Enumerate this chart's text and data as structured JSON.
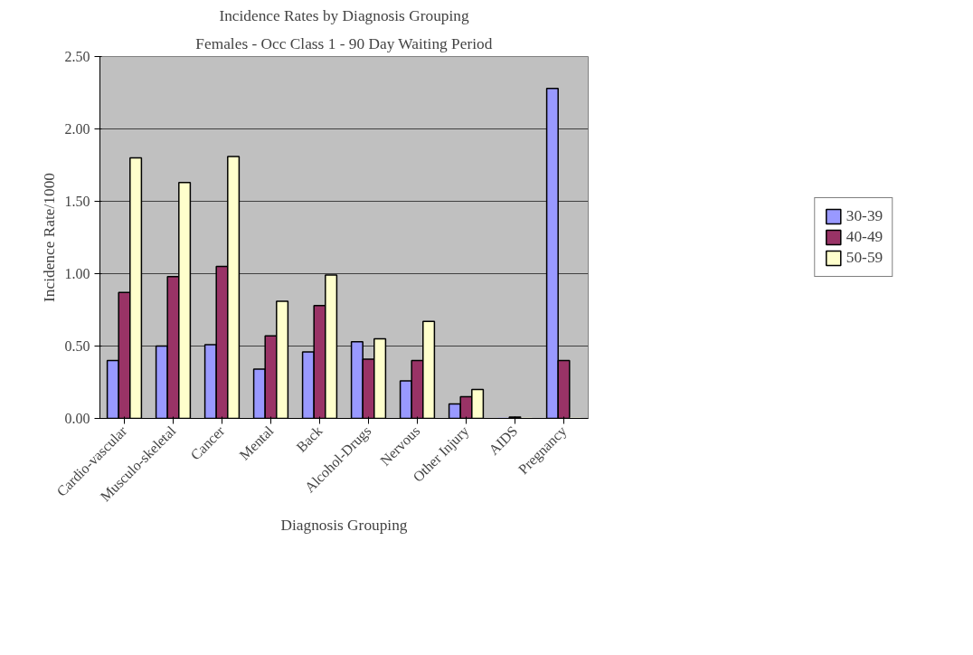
{
  "chart_data": {
    "type": "bar",
    "title": "Incidence Rates by Diagnosis Grouping",
    "subtitle": "Females - Occ Class 1 - 90 Day Waiting Period",
    "xlabel": "Diagnosis Grouping",
    "ylabel": "Incidence Rate/1000",
    "categories": [
      "Cardio-vascular",
      "Musculo-skeletal",
      "Cancer",
      "Mental",
      "Back",
      "Alcohol-Drugs",
      "Nervous",
      "Other Injury",
      "AIDS",
      "Pregnancy"
    ],
    "series": [
      {
        "name": "30-39",
        "color": "#9999ff",
        "values": [
          0.4,
          0.5,
          0.51,
          0.34,
          0.46,
          0.53,
          0.26,
          0.1,
          0.0,
          2.28
        ]
      },
      {
        "name": "40-49",
        "color": "#993366",
        "values": [
          0.87,
          0.98,
          1.05,
          0.57,
          0.78,
          0.41,
          0.4,
          0.15,
          0.01,
          0.4
        ]
      },
      {
        "name": "50-59",
        "color": "#ffffcc",
        "values": [
          1.8,
          1.63,
          1.81,
          0.81,
          0.99,
          0.55,
          0.67,
          0.2,
          0.0,
          0.0
        ]
      }
    ],
    "ylim": [
      0,
      2.5
    ],
    "yticks": [
      {
        "value": 0,
        "label": "0.00"
      },
      {
        "value": 0.5,
        "label": "0.50"
      },
      {
        "value": 1,
        "label": "1.00"
      },
      {
        "value": 1.5,
        "label": "1.50"
      },
      {
        "value": 2,
        "label": "2.00"
      },
      {
        "value": 2.5,
        "label": "2.50"
      }
    ],
    "grid": "y",
    "legend": "right"
  }
}
